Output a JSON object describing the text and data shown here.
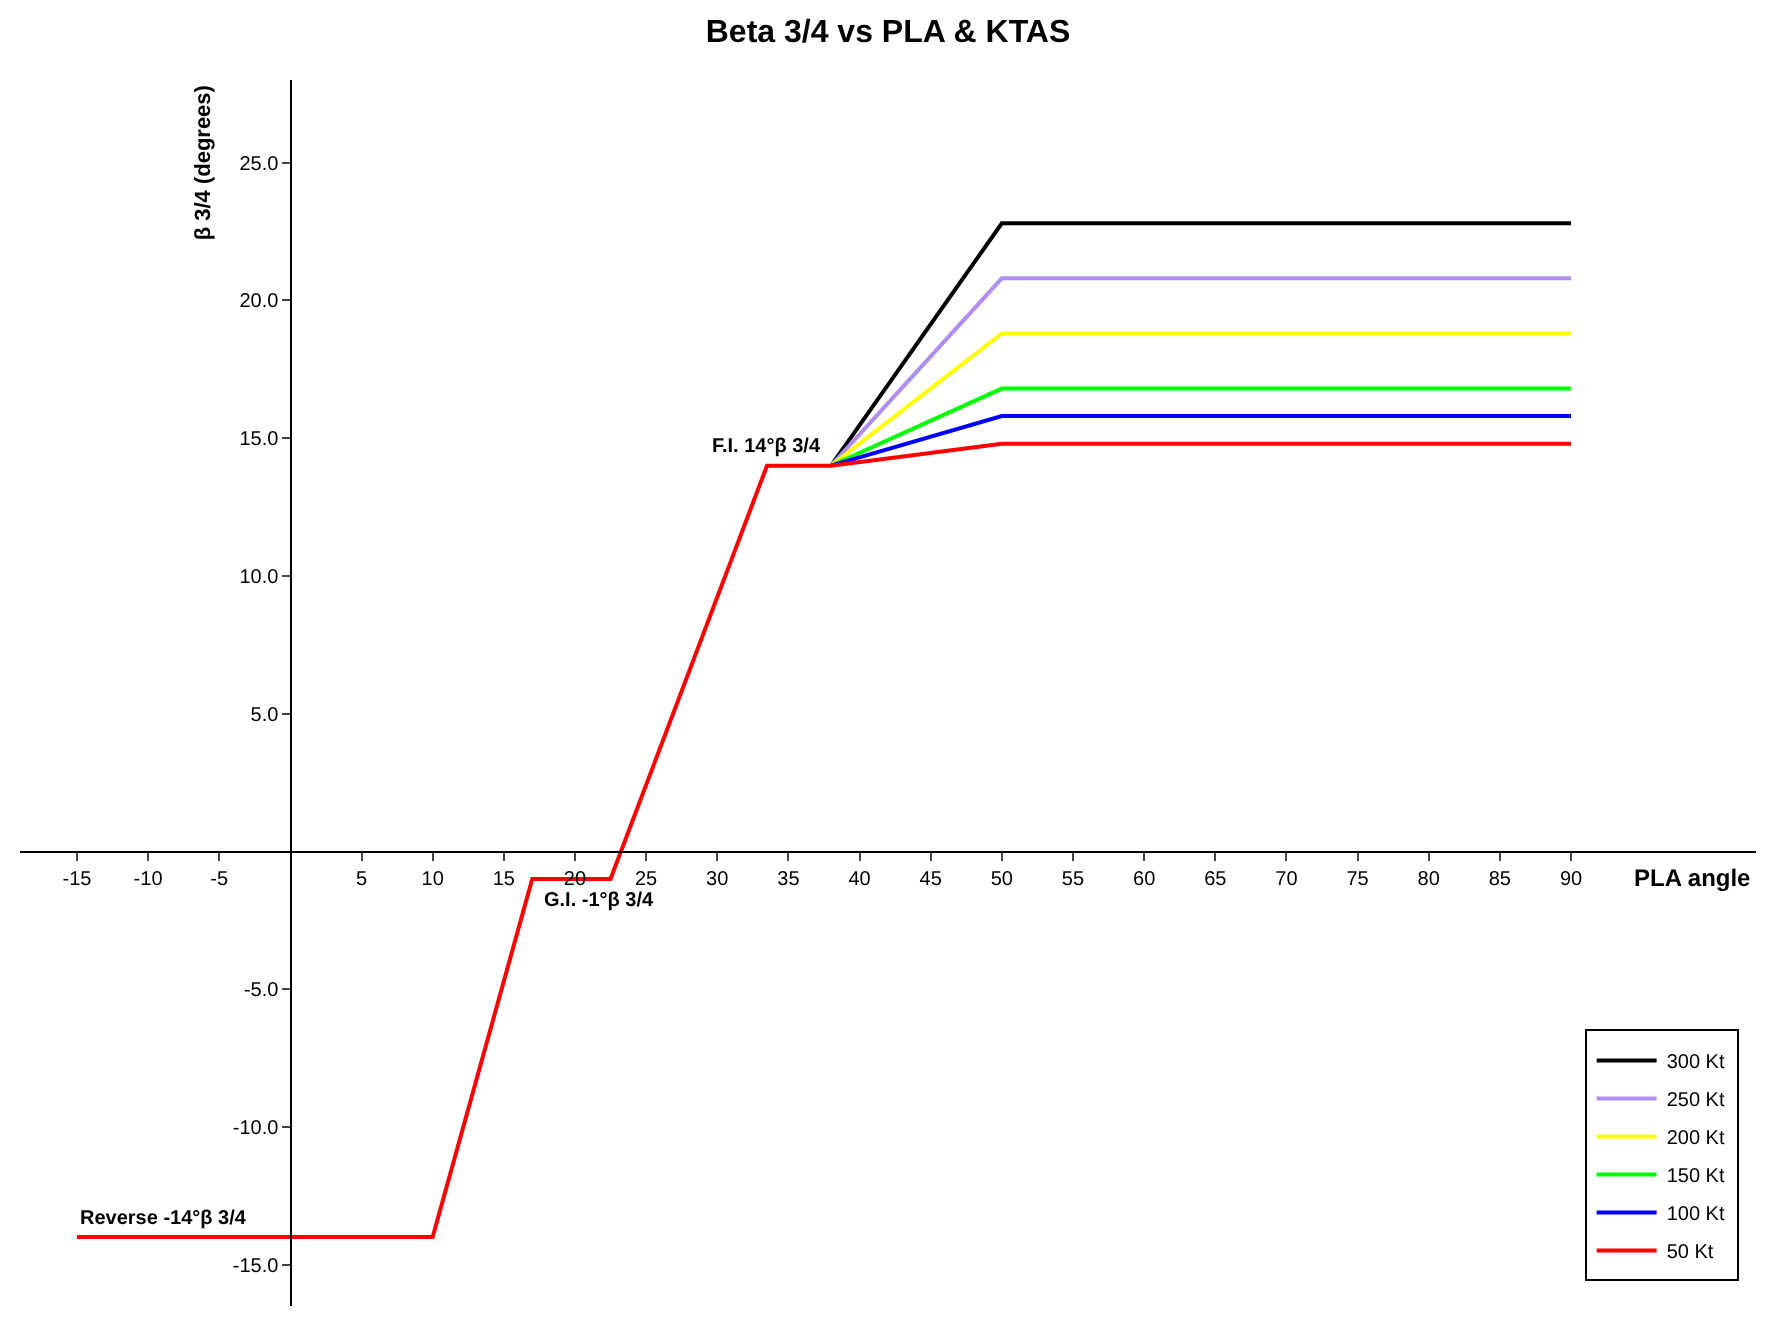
{
  "chart_data": {
    "type": "line",
    "title": "Beta 3/4 vs PLA & KTAS",
    "xlabel": "PLA angle",
    "ylabel": "β 3/4 (degrees)",
    "xlim": [
      -19,
      103
    ],
    "ylim": [
      -16.5,
      28
    ],
    "xticks": [
      -15,
      -10,
      -5,
      5,
      10,
      15,
      20,
      25,
      30,
      35,
      40,
      45,
      50,
      55,
      60,
      65,
      70,
      75,
      80,
      85,
      90
    ],
    "yticks": [
      {
        "value": -15,
        "label": "-15.0"
      },
      {
        "value": -10,
        "label": "-10.0"
      },
      {
        "value": -5,
        "label": "-5.0"
      },
      {
        "value": 5,
        "label": "5.0"
      },
      {
        "value": 10,
        "label": "10.0"
      },
      {
        "value": 15,
        "label": "15.0"
      },
      {
        "value": 20,
        "label": "20.0"
      },
      {
        "value": 25,
        "label": "25.0"
      }
    ],
    "legend": "bottom right",
    "marker": "none",
    "line_style": "solid",
    "series": [
      {
        "name": "300 Kt",
        "color": "#000000",
        "x": [
          38,
          50,
          90
        ],
        "values": [
          14,
          22.8,
          22.8
        ]
      },
      {
        "name": "250 Kt",
        "color": "#b08ef0",
        "x": [
          38,
          50,
          90
        ],
        "values": [
          14,
          20.8,
          20.8
        ]
      },
      {
        "name": "200 Kt",
        "color": "#ffff00",
        "x": [
          38,
          50,
          90
        ],
        "values": [
          14,
          18.8,
          18.8
        ]
      },
      {
        "name": "150 Kt",
        "color": "#00ff00",
        "x": [
          38,
          50,
          90
        ],
        "values": [
          14,
          16.8,
          16.8
        ]
      },
      {
        "name": "100 Kt",
        "color": "#0000ff",
        "x": [
          38,
          50,
          90
        ],
        "values": [
          14,
          15.8,
          15.8
        ]
      },
      {
        "name": "50 Kt",
        "color": "#ff0000",
        "x": [
          -15,
          10,
          17,
          22.5,
          33.5,
          38,
          50,
          90
        ],
        "values": [
          -14,
          -14,
          -1,
          -1,
          14,
          14,
          14.8,
          14.8
        ]
      }
    ],
    "annotations": [
      {
        "text": "F.I. 14°β 3/4",
        "x": 37.5,
        "y": 14
      },
      {
        "text": "G.I. -1°β 3/4",
        "x": 17.5,
        "y": -1
      },
      {
        "text": "Reverse -14°β 3/4",
        "x": -15,
        "y": -14
      }
    ]
  }
}
